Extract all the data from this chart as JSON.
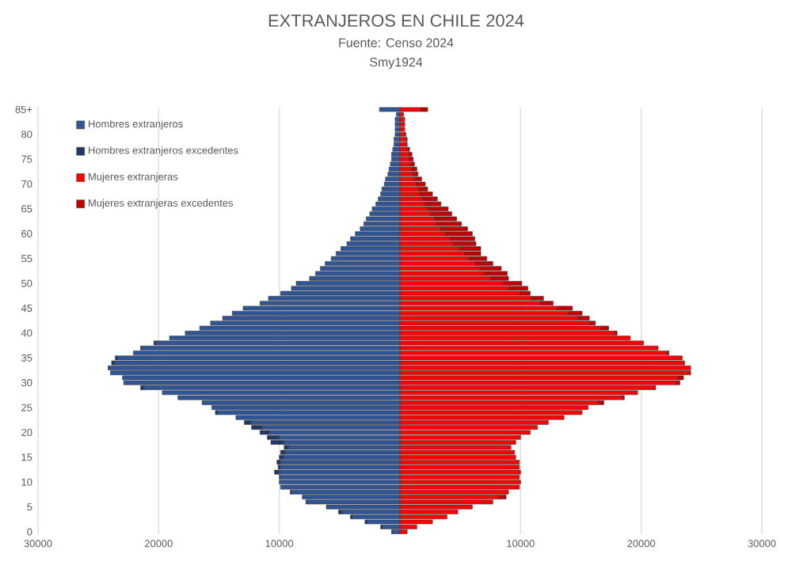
{
  "chart_data": {
    "type": "bar",
    "orientation": "horizontal",
    "stacked": true,
    "title": "EXTRANJEROS EN CHILE 2024",
    "subtitle": "Fuente: Censo 2024",
    "annotations": [
      "Smy1924"
    ],
    "categories": [
      "85+",
      null,
      null,
      null,
      null,
      "80",
      null,
      null,
      null,
      null,
      "75",
      null,
      null,
      null,
      null,
      "70",
      null,
      null,
      null,
      null,
      "65",
      null,
      null,
      null,
      null,
      "60",
      null,
      null,
      null,
      null,
      "55",
      null,
      null,
      null,
      null,
      "50",
      null,
      null,
      null,
      null,
      "45",
      null,
      null,
      null,
      null,
      "40",
      null,
      null,
      null,
      null,
      "35",
      null,
      null,
      null,
      null,
      "30",
      null,
      null,
      null,
      null,
      "25",
      null,
      null,
      null,
      null,
      "20",
      null,
      null,
      null,
      null,
      "15",
      null,
      null,
      null,
      null,
      "10",
      null,
      null,
      null,
      null,
      "5",
      null,
      null,
      null,
      null,
      "0"
    ],
    "series": [
      {
        "name": "Hombres extranjeros",
        "color": "#2f5597",
        "values": [
          -1700,
          -300,
          -400,
          -400,
          -400,
          -400,
          -500,
          -500,
          -600,
          -700,
          -700,
          -800,
          -900,
          -1000,
          -1200,
          -1300,
          -1500,
          -1600,
          -1800,
          -2000,
          -2300,
          -2500,
          -2800,
          -3000,
          -3300,
          -3700,
          -4100,
          -4400,
          -4900,
          -5300,
          -5700,
          -6200,
          -6600,
          -7000,
          -7500,
          -8600,
          -9000,
          -9900,
          -10900,
          -11600,
          -13000,
          -13900,
          -14700,
          -15700,
          -16600,
          -17800,
          -19100,
          -20200,
          -21400,
          -22100,
          -23400,
          -23600,
          -24100,
          -24000,
          -23000,
          -22900,
          -21200,
          -19700,
          -18400,
          -16400,
          -15600,
          -15100,
          -13600,
          -12300,
          -11400,
          -10800,
          -10000,
          -9600,
          -9200,
          -9500,
          -9600,
          -9900,
          -9900,
          -10000,
          -9900,
          -10000,
          -9900,
          -9000,
          -8100,
          -7700,
          -6000,
          -4800,
          -3900,
          -2700,
          -1400,
          -600
        ]
      },
      {
        "name": "Hombres extranjeros excedentes",
        "color": "#1f3864",
        "values": [
          0,
          0,
          0,
          0,
          0,
          0,
          0,
          0,
          0,
          0,
          0,
          0,
          0,
          0,
          0,
          0,
          0,
          0,
          0,
          0,
          0,
          0,
          0,
          0,
          0,
          0,
          0,
          0,
          0,
          0,
          0,
          0,
          0,
          0,
          0,
          0,
          0,
          0,
          0,
          0,
          0,
          0,
          0,
          0,
          0,
          0,
          0,
          -200,
          -100,
          0,
          -200,
          -300,
          -100,
          0,
          0,
          0,
          -300,
          0,
          0,
          0,
          0,
          -200,
          0,
          -600,
          -900,
          -800,
          -1000,
          -1100,
          -400,
          -400,
          -400,
          -300,
          -200,
          -400,
          -100,
          0,
          0,
          -100,
          0,
          -100,
          -100,
          -300,
          -200,
          -200,
          -200,
          -100
        ]
      },
      {
        "name": "Mujeres extranjeras",
        "color": "#ff0000",
        "values": [
          1700,
          300,
          400,
          400,
          400,
          400,
          500,
          500,
          600,
          700,
          700,
          800,
          900,
          1000,
          1200,
          1300,
          1500,
          1600,
          1800,
          2000,
          2300,
          2500,
          2800,
          3000,
          3300,
          3700,
          4100,
          4400,
          4900,
          5300,
          5700,
          6200,
          6600,
          7000,
          7500,
          8600,
          9000,
          9900,
          10900,
          11600,
          13000,
          13900,
          14700,
          15700,
          16600,
          17800,
          19100,
          20200,
          21400,
          22100,
          23400,
          23600,
          24100,
          24000,
          23000,
          22900,
          21200,
          19700,
          18400,
          16400,
          15600,
          15100,
          13600,
          12300,
          11400,
          10800,
          10000,
          9600,
          9200,
          9500,
          9600,
          9900,
          9900,
          10000,
          9900,
          10000,
          9900,
          9000,
          8100,
          7700,
          6000,
          4800,
          3900,
          2700,
          1400,
          600
        ]
      },
      {
        "name": "Mujeres extranjeras excedentes",
        "color": "#c00000",
        "values": [
          600,
          0,
          0,
          0,
          0,
          100,
          100,
          100,
          200,
          300,
          400,
          400,
          500,
          500,
          600,
          800,
          800,
          1100,
          1300,
          1400,
          1700,
          1800,
          1900,
          2100,
          2300,
          2300,
          2100,
          1900,
          1800,
          1400,
          1500,
          1500,
          1800,
          1900,
          1500,
          1500,
          1600,
          900,
          1000,
          1100,
          1300,
          1200,
          1000,
          500,
          700,
          200,
          0,
          0,
          0,
          200,
          0,
          0,
          0,
          100,
          500,
          300,
          0,
          0,
          200,
          500,
          0,
          0,
          0,
          0,
          0,
          0,
          0,
          0,
          0,
          0,
          0,
          0,
          0,
          0,
          0,
          0,
          0,
          0,
          700,
          0,
          0,
          0,
          0,
          0,
          0,
          0
        ]
      }
    ],
    "xlim": [
      -30000,
      30000
    ],
    "xticks": [
      {
        "value": -30000,
        "label": "30000"
      },
      {
        "value": -20000,
        "label": "20000"
      },
      {
        "value": -10000,
        "label": "10000"
      },
      {
        "value": 0,
        "label": null
      },
      {
        "value": 10000,
        "label": "10000"
      },
      {
        "value": 20000,
        "label": "20000"
      },
      {
        "value": 30000,
        "label": "30000"
      }
    ],
    "grid": "x",
    "legend": "top left"
  }
}
